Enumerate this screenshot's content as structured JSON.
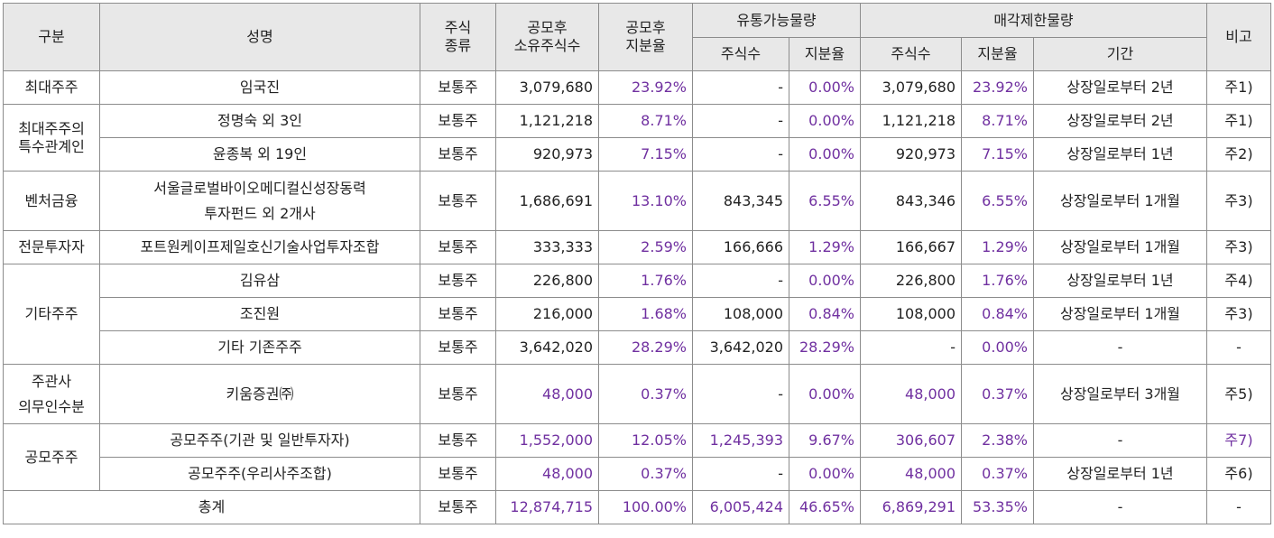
{
  "headers": {
    "category": "구분",
    "name": "성명",
    "type": [
      "주식",
      "종류"
    ],
    "post_shares": [
      "공모후",
      "소유주식수"
    ],
    "post_ratio": [
      "공모후",
      "지분율"
    ],
    "tradable": "유통가능물량",
    "restricted": "매각제한물량",
    "shares": "주식수",
    "ratio": "지분율",
    "period": "기간",
    "note": "비고"
  },
  "rows": [
    {
      "category": "최대주주",
      "name": "임국진",
      "type": "보통주",
      "post_shares": "3,079,680",
      "post_ratio": "23.92%",
      "tr_shares": "-",
      "tr_ratio": "0.00%",
      "rs_shares": "3,079,680",
      "rs_ratio": "23.92%",
      "period": "상장일로부터 2년",
      "note": "주1)"
    },
    {
      "category": "최대주주의\n특수관계인",
      "name": "정명숙 외 3인",
      "type": "보통주",
      "post_shares": "1,121,218",
      "post_ratio": "8.71%",
      "tr_shares": "-",
      "tr_ratio": "0.00%",
      "rs_shares": "1,121,218",
      "rs_ratio": "8.71%",
      "period": "상장일로부터 2년",
      "note": "주1)"
    },
    {
      "name": "윤종복 외 19인",
      "type": "보통주",
      "post_shares": "920,973",
      "post_ratio": "7.15%",
      "tr_shares": "-",
      "tr_ratio": "0.00%",
      "rs_shares": "920,973",
      "rs_ratio": "7.15%",
      "period": "상장일로부터 1년",
      "note": "주2)"
    },
    {
      "category": "벤처금융",
      "name": "서울글로벌바이오메디컬신성장동력\n투자펀드 외 2개사",
      "type": "보통주",
      "post_shares": "1,686,691",
      "post_ratio": "13.10%",
      "tr_shares": "843,345",
      "tr_ratio": "6.55%",
      "rs_shares": "843,346",
      "rs_ratio": "6.55%",
      "period": "상장일로부터 1개월",
      "note": "주3)"
    },
    {
      "category": "전문투자자",
      "name": "포트원케이프제일호신기술사업투자조합",
      "type": "보통주",
      "post_shares": "333,333",
      "post_ratio": "2.59%",
      "tr_shares": "166,666",
      "tr_ratio": "1.29%",
      "rs_shares": "166,667",
      "rs_ratio": "1.29%",
      "period": "상장일로부터 1개월",
      "note": "주3)"
    },
    {
      "category": "기타주주",
      "name": "김유삼",
      "type": "보통주",
      "post_shares": "226,800",
      "post_ratio": "1.76%",
      "tr_shares": "-",
      "tr_ratio": "0.00%",
      "rs_shares": "226,800",
      "rs_ratio": "1.76%",
      "period": "상장일로부터 1년",
      "note": "주4)"
    },
    {
      "name": "조진원",
      "type": "보통주",
      "post_shares": "216,000",
      "post_ratio": "1.68%",
      "tr_shares": "108,000",
      "tr_ratio": "0.84%",
      "rs_shares": "108,000",
      "rs_ratio": "0.84%",
      "period": "상장일로부터 1개월",
      "note": "주3)"
    },
    {
      "name": "기타 기존주주",
      "type": "보통주",
      "post_shares": "3,642,020",
      "post_ratio": "28.29%",
      "tr_shares": "3,642,020",
      "tr_ratio": "28.29%",
      "rs_shares": "-",
      "rs_ratio": "0.00%",
      "period": "-",
      "note": "-"
    },
    {
      "category": "주관사\n의무인수분",
      "name": "키움증권㈜",
      "type": "보통주",
      "post_shares": "48,000",
      "post_ratio": "0.37%",
      "tr_shares": "-",
      "tr_ratio": "0.00%",
      "rs_shares": "48,000",
      "rs_ratio": "0.37%",
      "period": "상장일로부터 3개월",
      "note": "주5)"
    },
    {
      "category": "공모주주",
      "name": "공모주주(기관 및 일반투자자)",
      "type": "보통주",
      "post_shares": "1,552,000",
      "post_ratio": "12.05%",
      "tr_shares": "1,245,393",
      "tr_ratio": "9.67%",
      "rs_shares": "306,607",
      "rs_ratio": "2.38%",
      "period": "-",
      "note": "주7)"
    },
    {
      "name": "공모주주(우리사주조합)",
      "type": "보통주",
      "post_shares": "48,000",
      "post_ratio": "0.37%",
      "tr_shares": "-",
      "tr_ratio": "0.00%",
      "rs_shares": "48,000",
      "rs_ratio": "0.37%",
      "period": "상장일로부터 1년",
      "note": "주6)"
    }
  ],
  "total": {
    "label": "총계",
    "type": "보통주",
    "post_shares": "12,874,715",
    "post_ratio": "100.00%",
    "tr_shares": "6,005,424",
    "tr_ratio": "46.65%",
    "rs_shares": "6,869,291",
    "rs_ratio": "53.35%",
    "period": "-",
    "note": "-"
  },
  "colors": {
    "header_bg": "#e8e8e8",
    "border": "#8c8c8c",
    "accent_purple": "#7030a0",
    "text": "#222222"
  }
}
